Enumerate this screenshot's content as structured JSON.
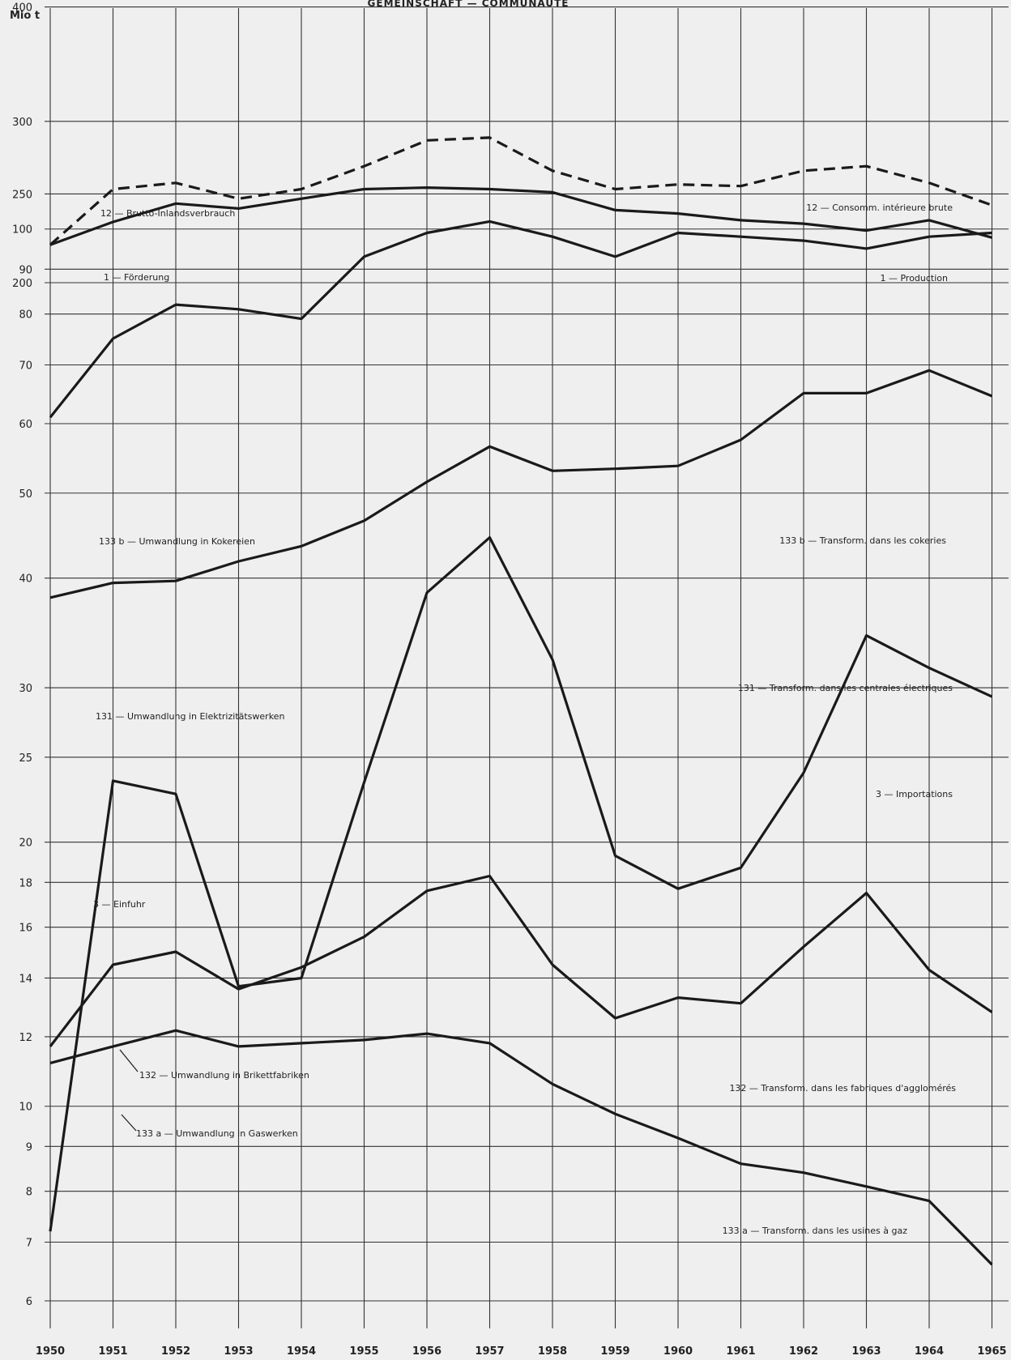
{
  "header": {
    "title": "GEMEINSCHAFT — COMMUNAUTE"
  },
  "chart_data": {
    "type": "line",
    "unit": "Mio t",
    "x": [
      1950,
      1951,
      1952,
      1953,
      1954,
      1955,
      1956,
      1957,
      1958,
      1959,
      1960,
      1961,
      1962,
      1963,
      1964,
      1965
    ],
    "panels": [
      {
        "yticks": [
          200,
          250,
          300,
          400
        ],
        "series": [
          {
            "name_left": "12 — Brutto-Inlandsverbrauch",
            "name_right": "12 — Consomm. intérieure brute",
            "style": "dashed",
            "values": [
              220,
              253,
              257,
              247,
              253,
              268,
              286,
              288,
              265,
              253,
              256,
              255,
              265,
              268,
              257,
              243
            ]
          },
          {
            "name_left": "1 — Förderung",
            "name_right": "1 — Production",
            "style": "solid",
            "values": [
              220,
              233,
              244,
              241,
              247,
              253,
              254,
              253,
              251,
              240,
              238,
              234,
              232,
              228,
              234,
              224
            ]
          }
        ]
      },
      {
        "yticks": [
          6,
          7,
          8,
          9,
          10,
          12,
          14,
          16,
          18,
          20,
          25,
          30,
          40,
          50,
          60,
          70,
          80,
          90,
          100
        ],
        "series": [
          {
            "name_left": "133 b — Umwandlung in Kokereien",
            "name_right": "133 b — Transform. dans les cokeries",
            "style": "solid",
            "values": [
              61,
              75,
              82,
              81,
              79,
              93,
              99,
              102,
              98,
              93,
              99,
              98,
              97,
              95,
              98,
              99
            ]
          },
          {
            "name_left": "131 — Umwandlung in Elektrizitätswerken",
            "name_right": "131 — Transform. dans les centrales électriques",
            "style": "solid",
            "values": [
              38,
              39.5,
              39.7,
              41.8,
              43.5,
              46.5,
              51.5,
              56.5,
              53,
              53.3,
              53.7,
              57.5,
              65,
              65,
              69,
              64.5
            ]
          },
          {
            "name_left": "3 — Einfuhr",
            "name_right": "3 — Importations",
            "style": "solid",
            "values": [
              7.2,
              23.5,
              22.7,
              13.7,
              14,
              23.4,
              38.5,
              44.5,
              32.3,
              19.3,
              17.7,
              18.7,
              24,
              34.4,
              31.6,
              29.3
            ]
          },
          {
            "name_left": "132 — Umwandlung in Brikettfabriken",
            "name_right": "132 — Transform. dans les fabriques d'agglomérés",
            "style": "solid",
            "values": [
              11.7,
              14.5,
              15,
              13.6,
              14.4,
              15.6,
              17.6,
              18.3,
              14.5,
              12.6,
              13.3,
              13.1,
              15.2,
              17.5,
              14.3,
              12.8
            ]
          },
          {
            "name_left": "133 a — Umwandlung in Gaswerken",
            "name_right": "133 a — Transform. dans les usines à gaz",
            "style": "solid",
            "values": [
              11.2,
              11.7,
              12.2,
              11.7,
              11.8,
              11.9,
              12.1,
              11.8,
              10.6,
              9.8,
              9.2,
              8.6,
              8.4,
              8.1,
              7.8,
              6.6
            ]
          }
        ]
      }
    ]
  }
}
